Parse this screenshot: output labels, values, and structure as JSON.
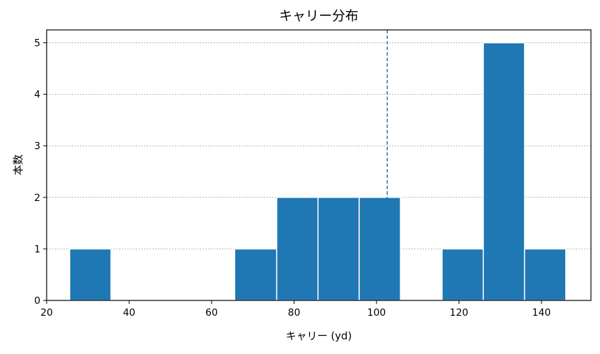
{
  "chart_data": {
    "type": "bar",
    "title": "キャリー分布",
    "xlabel": "キャリー (yd)",
    "ylabel": "本数",
    "xlim": [
      20,
      152
    ],
    "ylim": [
      0,
      5.25
    ],
    "x_ticks": [
      20,
      40,
      60,
      80,
      100,
      120,
      140
    ],
    "y_ticks": [
      0,
      1,
      2,
      3,
      4,
      5
    ],
    "grid": "y-dotted",
    "bins": [
      {
        "start": 25.6,
        "end": 35.6,
        "count": 1
      },
      {
        "start": 35.6,
        "end": 45.6,
        "count": 0
      },
      {
        "start": 45.6,
        "end": 55.6,
        "count": 0
      },
      {
        "start": 55.6,
        "end": 65.6,
        "count": 0
      },
      {
        "start": 65.6,
        "end": 75.8,
        "count": 1
      },
      {
        "start": 75.8,
        "end": 85.8,
        "count": 2
      },
      {
        "start": 85.8,
        "end": 95.8,
        "count": 2
      },
      {
        "start": 95.8,
        "end": 105.8,
        "count": 2
      },
      {
        "start": 105.8,
        "end": 115.9,
        "count": 0
      },
      {
        "start": 115.9,
        "end": 125.9,
        "count": 1
      },
      {
        "start": 125.9,
        "end": 135.9,
        "count": 5
      },
      {
        "start": 135.9,
        "end": 145.9,
        "count": 1
      }
    ],
    "reference_line": {
      "x": 102.6,
      "style": "dashed"
    },
    "colors": {
      "bar": "#1f77b4",
      "reference_line": "#1f77b4"
    }
  }
}
